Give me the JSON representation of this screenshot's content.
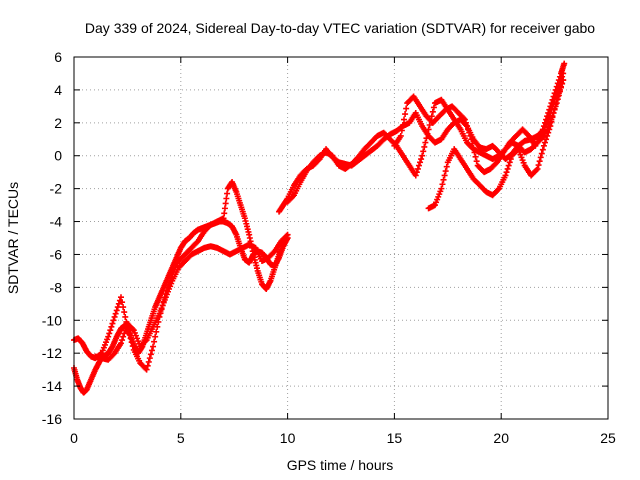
{
  "chart_data": {
    "type": "scatter",
    "title": "Day 339 of 2024, Sidereal Day-to-day VTEC variation (SDTVAR) for receiver gabo",
    "xlabel": "GPS time / hours",
    "ylabel": "SDTVAR / TECUs",
    "xlim": [
      0,
      25
    ],
    "ylim": [
      -16,
      6
    ],
    "xticks": [
      "0",
      "5",
      "10",
      "15",
      "20",
      "25"
    ],
    "yticks": [
      "6",
      "4",
      "2",
      "0",
      "-2",
      "-4",
      "-6",
      "-8",
      "-10",
      "-12",
      "-14",
      "-16"
    ],
    "grid": true,
    "marker": "+",
    "color": "#ff0000",
    "series": [
      {
        "x": [
          0.0,
          0.15,
          0.3,
          0.45,
          0.6,
          0.8,
          1.0,
          1.2,
          1.4,
          1.6,
          1.8,
          2.0,
          2.2,
          2.4,
          2.6,
          2.8,
          3.0,
          3.2,
          3.4,
          3.6,
          3.8,
          4.0,
          4.2,
          4.4,
          4.6,
          4.8,
          5.0,
          5.2,
          5.4,
          5.6,
          5.8,
          6.0,
          6.2,
          6.4,
          6.6,
          6.8,
          7.0,
          7.2,
          7.4,
          7.6,
          7.8,
          8.0,
          8.2,
          8.4,
          8.6,
          8.8,
          9.0,
          9.2,
          9.4,
          9.6,
          9.8,
          10.0
        ],
        "y": [
          -12.9,
          -13.6,
          -14.1,
          -14.4,
          -14.2,
          -13.6,
          -13.0,
          -12.5,
          -12.2,
          -12.0,
          -11.6,
          -11.0,
          -10.5,
          -10.3,
          -10.8,
          -11.5,
          -12.0,
          -11.6,
          -10.8,
          -10.0,
          -9.2,
          -8.6,
          -8.0,
          -7.4,
          -6.8,
          -6.2,
          -5.6,
          -5.2,
          -5.0,
          -4.7,
          -4.5,
          -4.4,
          -4.3,
          -4.2,
          -4.1,
          -4.0,
          -4.0,
          -4.1,
          -4.3,
          -4.8,
          -5.6,
          -6.3,
          -6.5,
          -6.0,
          -5.8,
          -5.9,
          -6.2,
          -6.6,
          -6.7,
          -6.2,
          -5.5,
          -5.0
        ]
      },
      {
        "x": [
          0.0,
          0.2,
          0.4,
          0.6,
          0.8,
          1.0,
          1.3,
          1.6,
          1.9,
          2.2,
          2.5,
          2.8,
          3.1,
          3.4,
          3.7,
          4.0,
          4.3,
          4.6,
          4.9,
          5.2,
          5.5,
          5.8,
          6.1,
          6.4,
          6.7,
          7.0,
          7.2,
          7.4,
          7.6,
          7.8,
          8.0,
          8.2,
          8.4,
          8.6,
          8.8,
          9.0,
          9.2,
          9.4,
          9.6,
          9.8,
          10.0
        ],
        "y": [
          -11.2,
          -11.1,
          -11.4,
          -11.9,
          -12.2,
          -12.3,
          -12.0,
          -11.0,
          -9.8,
          -8.6,
          -10.4,
          -11.8,
          -12.6,
          -13.0,
          -11.6,
          -9.8,
          -8.4,
          -7.2,
          -6.4,
          -6.0,
          -5.6,
          -5.2,
          -4.6,
          -4.2,
          -4.0,
          -3.8,
          -2.0,
          -1.6,
          -2.2,
          -3.0,
          -3.8,
          -4.8,
          -6.0,
          -7.0,
          -7.8,
          -8.1,
          -7.6,
          -6.8,
          -6.0,
          -5.4,
          -5.0
        ]
      },
      {
        "x": [
          1.0,
          1.3,
          1.6,
          1.9,
          2.2,
          2.5,
          2.8,
          3.1,
          3.4,
          3.7,
          4.0,
          4.3,
          4.6,
          4.9,
          5.2,
          5.5,
          5.8,
          6.1,
          6.4,
          6.7,
          7.0,
          7.3,
          7.6,
          7.9,
          8.2,
          8.5,
          8.8,
          9.1,
          9.4,
          9.7,
          10.0
        ],
        "y": [
          -12.2,
          -12.3,
          -12.4,
          -12.0,
          -11.4,
          -10.2,
          -10.6,
          -11.6,
          -11.2,
          -10.4,
          -9.6,
          -8.6,
          -7.6,
          -6.8,
          -6.4,
          -6.0,
          -5.8,
          -5.6,
          -5.5,
          -5.6,
          -5.8,
          -6.0,
          -5.8,
          -5.6,
          -5.4,
          -5.6,
          -6.4,
          -6.2,
          -5.8,
          -5.2,
          -4.8
        ]
      },
      {
        "x": [
          9.6,
          9.8,
          10.0,
          10.3,
          10.6,
          10.9,
          11.2,
          11.5,
          11.8,
          12.1,
          12.4,
          12.7,
          13.0,
          13.3,
          13.6,
          13.9,
          14.2,
          14.5,
          14.8,
          15.1,
          15.4,
          15.7,
          16.0,
          16.3,
          16.6,
          16.9,
          17.2,
          17.5,
          17.8,
          18.1,
          18.4,
          18.7,
          19.0,
          19.3,
          19.6,
          19.9,
          20.2,
          20.5,
          20.8,
          21.1,
          21.4,
          21.7,
          22.0,
          22.3,
          22.6,
          22.9
        ],
        "y": [
          -3.4,
          -3.0,
          -2.6,
          -1.8,
          -1.2,
          -0.8,
          -0.6,
          -0.2,
          0.4,
          -0.1,
          -0.4,
          -0.5,
          -0.6,
          -0.3,
          0.0,
          0.3,
          0.6,
          1.0,
          1.3,
          1.5,
          1.8,
          2.0,
          2.6,
          1.8,
          1.2,
          0.8,
          1.0,
          1.6,
          2.0,
          2.2,
          1.8,
          1.0,
          0.5,
          0.4,
          0.6,
          0.2,
          -0.2,
          0.1,
          0.6,
          0.9,
          1.0,
          1.2,
          1.6,
          2.6,
          3.8,
          5.0
        ]
      },
      {
        "x": [
          10.0,
          10.3,
          10.6,
          10.9,
          11.2,
          11.5,
          11.8,
          12.1,
          12.4,
          12.7,
          13.0,
          13.3,
          13.6,
          13.9,
          14.2,
          14.5,
          14.8,
          15.1,
          15.4,
          15.7,
          16.0,
          16.3,
          16.6,
          16.9,
          17.2,
          17.5,
          17.8,
          18.1,
          18.4,
          18.7,
          19.0,
          19.3,
          19.6,
          19.9,
          20.2,
          20.5,
          20.8,
          21.1,
          21.4,
          21.7,
          22.0,
          22.3,
          22.6,
          22.9
        ],
        "y": [
          -2.8,
          -2.4,
          -1.6,
          -0.9,
          -0.4,
          0.0,
          0.2,
          0.0,
          -0.6,
          -0.8,
          -0.5,
          -0.1,
          0.4,
          0.8,
          1.2,
          1.4,
          1.0,
          0.6,
          0.0,
          -0.6,
          -1.2,
          0.0,
          1.6,
          3.2,
          3.4,
          2.8,
          2.2,
          1.6,
          0.8,
          0.4,
          0.2,
          0.0,
          -0.2,
          0.0,
          0.4,
          0.8,
          0.6,
          0.2,
          0.4,
          0.8,
          1.2,
          2.0,
          3.2,
          4.6
        ]
      },
      {
        "x": [
          15.0,
          15.3,
          15.6,
          15.9,
          16.2,
          16.5,
          16.8,
          17.1,
          17.4,
          17.7,
          18.0,
          18.3,
          18.6,
          18.9,
          19.2,
          19.5,
          19.8,
          20.1,
          20.4,
          20.7,
          21.0,
          21.3,
          21.6,
          21.9,
          22.2,
          22.5,
          22.8,
          22.95
        ],
        "y": [
          0.6,
          1.2,
          3.2,
          3.6,
          3.0,
          2.4,
          2.0,
          2.4,
          2.8,
          3.0,
          2.6,
          2.2,
          1.0,
          -0.6,
          -1.0,
          -0.8,
          -0.4,
          0.2,
          0.8,
          1.2,
          1.6,
          1.2,
          0.6,
          1.4,
          2.6,
          3.8,
          5.0,
          5.6
        ]
      },
      {
        "x": [
          16.6,
          16.9,
          17.2,
          17.5,
          17.8,
          18.1,
          18.4,
          18.7,
          19.0,
          19.3,
          19.6,
          19.9,
          20.2,
          20.5,
          20.8,
          21.1,
          21.4,
          21.7,
          22.0,
          22.3,
          22.6,
          22.9
        ],
        "y": [
          -3.2,
          -3.0,
          -2.0,
          -0.4,
          0.4,
          -0.2,
          -0.8,
          -1.4,
          -1.8,
          -2.2,
          -2.4,
          -2.0,
          -1.2,
          0.0,
          0.4,
          -0.6,
          -1.2,
          -0.8,
          0.6,
          1.8,
          3.4,
          4.6
        ]
      }
    ]
  }
}
